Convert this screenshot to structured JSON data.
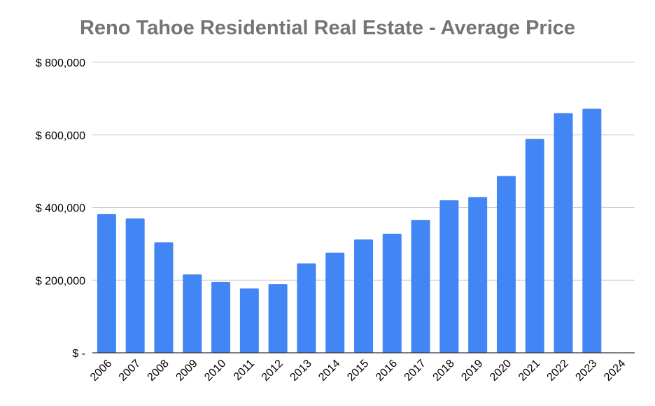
{
  "chart_data": {
    "type": "bar",
    "title": "Reno Tahoe Residential Real Estate - Average Price",
    "xlabel": "",
    "ylabel": "",
    "categories": [
      "2006",
      "2007",
      "2008",
      "2009",
      "2010",
      "2011",
      "2012",
      "2013",
      "2014",
      "2015",
      "2016",
      "2017",
      "2018",
      "2019",
      "2020",
      "2021",
      "2022",
      "2023",
      "2024"
    ],
    "series": [
      {
        "values": [
          382000,
          370000,
          304000,
          216000,
          195000,
          177000,
          189000,
          246000,
          276000,
          312000,
          328000,
          366000,
          420000,
          429000,
          487000,
          589000,
          660000,
          672000,
          null
        ]
      }
    ],
    "ylim": [
      0,
      800000
    ],
    "yticks": [
      0,
      200000,
      400000,
      600000,
      800000
    ],
    "ytick_labels": [
      "$ -",
      "$ 200,000",
      "$ 400,000",
      "$ 600,000",
      "$ 800,000"
    ],
    "bar_color": "#4285f4",
    "grid": true,
    "legend": "none"
  }
}
